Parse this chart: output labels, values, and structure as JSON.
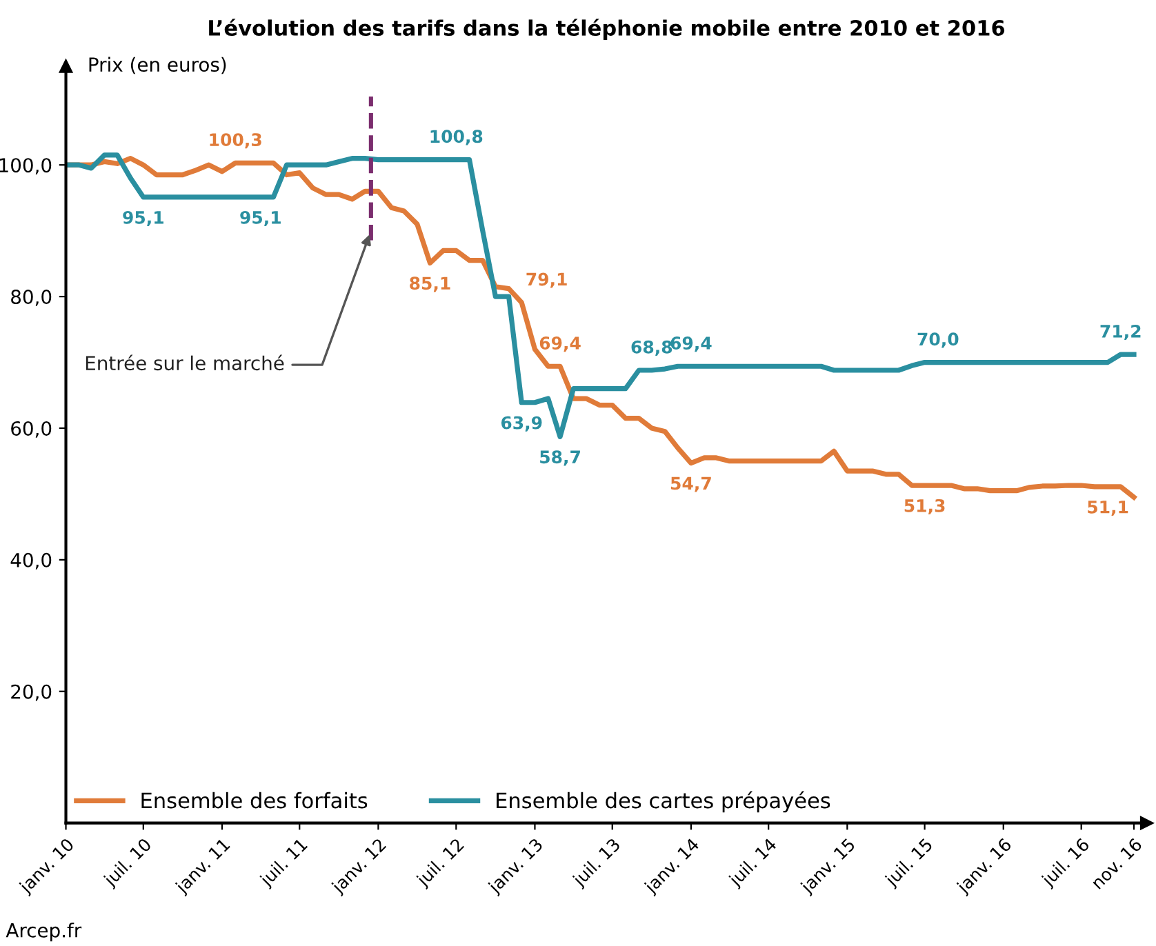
{
  "chart_data": {
    "type": "line",
    "title": "L’évolution des tarifs dans la téléphonie mobile entre 2010 et 2016",
    "ylabel": "Prix (en euros)",
    "x": [
      "2010-01",
      "2010-02",
      "2010-03",
      "2010-04",
      "2010-05",
      "2010-06",
      "2010-07",
      "2010-08",
      "2010-09",
      "2010-10",
      "2010-11",
      "2010-12",
      "2011-01",
      "2011-02",
      "2011-03",
      "2011-04",
      "2011-05",
      "2011-06",
      "2011-07",
      "2011-08",
      "2011-09",
      "2011-10",
      "2011-11",
      "2011-12",
      "2012-01",
      "2012-02",
      "2012-03",
      "2012-04",
      "2012-05",
      "2012-06",
      "2012-07",
      "2012-08",
      "2012-09",
      "2012-10",
      "2012-11",
      "2012-12",
      "2013-01",
      "2013-02",
      "2013-03",
      "2013-04",
      "2013-05",
      "2013-06",
      "2013-07",
      "2013-08",
      "2013-09",
      "2013-10",
      "2013-11",
      "2013-12",
      "2014-01",
      "2014-02",
      "2014-03",
      "2014-04",
      "2014-05",
      "2014-06",
      "2014-07",
      "2014-08",
      "2014-09",
      "2014-10",
      "2014-11",
      "2014-12",
      "2015-01",
      "2015-02",
      "2015-03",
      "2015-04",
      "2015-05",
      "2015-06",
      "2015-07",
      "2015-08",
      "2015-09",
      "2015-10",
      "2015-11",
      "2015-12",
      "2016-01",
      "2016-02",
      "2016-03",
      "2016-04",
      "2016-05",
      "2016-06",
      "2016-07",
      "2016-08",
      "2016-09",
      "2016-10",
      "2016-11"
    ],
    "xlim": [
      "2010-01",
      "2016-12"
    ],
    "xticks": [
      {
        "value": "2010-01",
        "label": "janv. 10"
      },
      {
        "value": "2010-07",
        "label": "juil. 10"
      },
      {
        "value": "2011-01",
        "label": "janv. 11"
      },
      {
        "value": "2011-07",
        "label": "juil. 11"
      },
      {
        "value": "2012-01",
        "label": "janv. 12"
      },
      {
        "value": "2012-07",
        "label": "juil. 12"
      },
      {
        "value": "2013-01",
        "label": "janv. 13"
      },
      {
        "value": "2013-07",
        "label": "juil. 13"
      },
      {
        "value": "2014-01",
        "label": "janv. 14"
      },
      {
        "value": "2014-07",
        "label": "juil. 14"
      },
      {
        "value": "2015-01",
        "label": "janv. 15"
      },
      {
        "value": "2015-07",
        "label": "juil. 15"
      },
      {
        "value": "2016-01",
        "label": "janv. 16"
      },
      {
        "value": "2016-07",
        "label": "juil. 16"
      },
      {
        "value": "2016-11",
        "label": "nov. 16"
      }
    ],
    "ylim": [
      0,
      115
    ],
    "yticks": [
      {
        "value": 20,
        "label": "20,0"
      },
      {
        "value": 40,
        "label": "40,0"
      },
      {
        "value": 60,
        "label": "60,0"
      },
      {
        "value": 80,
        "label": "80,0"
      },
      {
        "value": 100,
        "label": "100,0"
      }
    ],
    "series": [
      {
        "name": "Ensemble des forfaits",
        "color": "#e07b39",
        "values": [
          100,
          100,
          100,
          100.5,
          100.2,
          101,
          100,
          98.5,
          98.5,
          98.5,
          99.2,
          100,
          99,
          100.3,
          100.3,
          100.3,
          100.3,
          98.5,
          98.8,
          96.5,
          95.5,
          95.5,
          94.8,
          96,
          96,
          93.5,
          93,
          91,
          85.1,
          87,
          87,
          85.5,
          85.5,
          81.5,
          81.2,
          79.1,
          72,
          69.4,
          69.4,
          64.5,
          64.5,
          63.5,
          63.5,
          61.5,
          61.5,
          60,
          59.5,
          57,
          54.7,
          55.5,
          55.5,
          55,
          55,
          55,
          55,
          55,
          55,
          55,
          55,
          56.5,
          53.5,
          53.5,
          53.5,
          53,
          53,
          51.3,
          51.3,
          51.3,
          51.3,
          50.8,
          50.8,
          50.5,
          50.5,
          50.5,
          51,
          51.2,
          51.2,
          51.3,
          51.3,
          51.1,
          51.1,
          51.1,
          49.5
        ],
        "value_labels": [
          null,
          null,
          null,
          null,
          null,
          null,
          null,
          null,
          null,
          null,
          null,
          null,
          null,
          "100,3",
          null,
          null,
          null,
          null,
          null,
          null,
          null,
          null,
          null,
          null,
          null,
          null,
          null,
          null,
          "85,1",
          null,
          null,
          null,
          null,
          null,
          null,
          "79,1",
          null,
          null,
          "69,4",
          null,
          null,
          null,
          null,
          null,
          null,
          null,
          null,
          null,
          "54,7",
          null,
          null,
          null,
          null,
          null,
          null,
          null,
          null,
          null,
          null,
          null,
          null,
          null,
          null,
          null,
          null,
          null,
          "51,3",
          null,
          null,
          null,
          null,
          null,
          null,
          null,
          null,
          null,
          null,
          null,
          null,
          null,
          "51,1",
          null,
          null
        ]
      },
      {
        "name": "Ensemble des cartes prépayées",
        "color": "#2a8fa0",
        "values": [
          100,
          100,
          99.5,
          101.5,
          101.5,
          98,
          95.1,
          95.1,
          95.1,
          95.1,
          95.1,
          95.1,
          95.1,
          95.1,
          95.1,
          95.1,
          95.1,
          100,
          100,
          100,
          100,
          100.5,
          101,
          101,
          100.8,
          100.8,
          100.8,
          100.8,
          100.8,
          100.8,
          100.8,
          100.8,
          90,
          80,
          80,
          63.9,
          63.9,
          64.5,
          58.7,
          66,
          66,
          66,
          66,
          66,
          68.8,
          68.8,
          69,
          69.4,
          69.4,
          69.4,
          69.4,
          69.4,
          69.4,
          69.4,
          69.4,
          69.4,
          69.4,
          69.4,
          69.4,
          68.8,
          68.8,
          68.8,
          68.8,
          68.8,
          68.8,
          69.5,
          70,
          70,
          70,
          70,
          70,
          70,
          70,
          70,
          70,
          70,
          70,
          70,
          70,
          70,
          70,
          71.2,
          71.2
        ],
        "value_labels": [
          null,
          null,
          null,
          null,
          null,
          null,
          "95,1",
          null,
          null,
          null,
          null,
          null,
          null,
          null,
          null,
          "95,1",
          null,
          null,
          null,
          null,
          null,
          null,
          null,
          null,
          null,
          null,
          null,
          null,
          null,
          null,
          "100,8",
          null,
          null,
          null,
          null,
          "63,9",
          null,
          null,
          "58,7",
          null,
          null,
          null,
          null,
          null,
          null,
          "68,8",
          null,
          null,
          "69,4",
          null,
          null,
          null,
          null,
          null,
          null,
          null,
          null,
          null,
          null,
          null,
          null,
          null,
          null,
          null,
          null,
          null,
          null,
          "70,0",
          null,
          null,
          null,
          null,
          null,
          null,
          null,
          null,
          null,
          null,
          null,
          null,
          null,
          "71,2",
          null
        ]
      }
    ],
    "ref_lines": [
      {
        "axis": "x",
        "value": "2011-12-15",
        "color": "#7b2d6e",
        "line_style": "dashed"
      }
    ],
    "annotations": [
      {
        "text": "Entrée sur le marché",
        "x": "2011-12-15",
        "y": 90
      },
      "Arcep.fr"
    ],
    "legend": "bottom left",
    "grid": false,
    "marker": "none",
    "line_style": "solid"
  }
}
